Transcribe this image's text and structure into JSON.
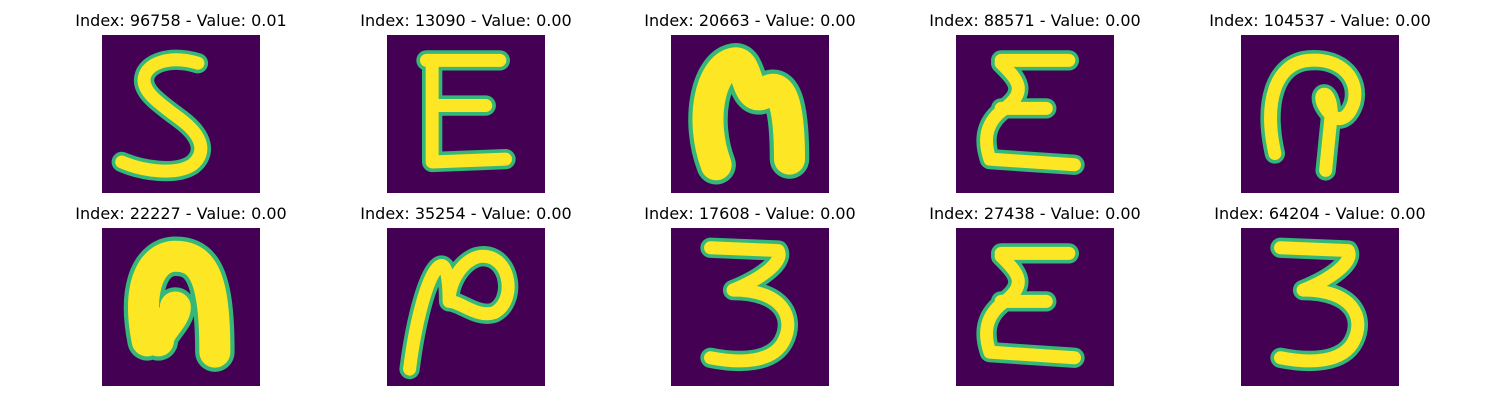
{
  "colors": {
    "background": "#440154",
    "stroke_core": "#fde725",
    "stroke_edge": "#35b779"
  },
  "panels": [
    {
      "index": "96758",
      "value": "0.01",
      "glyph": "5"
    },
    {
      "index": "13090",
      "value": "0.00",
      "glyph": "E"
    },
    {
      "index": "20663",
      "value": "0.00",
      "glyph": "arch-bold"
    },
    {
      "index": "88571",
      "value": "0.00",
      "glyph": "sigma"
    },
    {
      "index": "104537",
      "value": "0.00",
      "glyph": "hook"
    },
    {
      "index": "22227",
      "value": "0.00",
      "glyph": "arch-hook"
    },
    {
      "index": "35254",
      "value": "0.00",
      "glyph": "curl"
    },
    {
      "index": "17608",
      "value": "0.00",
      "glyph": "3"
    },
    {
      "index": "27438",
      "value": "0.00",
      "glyph": "sigma"
    },
    {
      "index": "64204",
      "value": "0.00",
      "glyph": "3"
    }
  ]
}
